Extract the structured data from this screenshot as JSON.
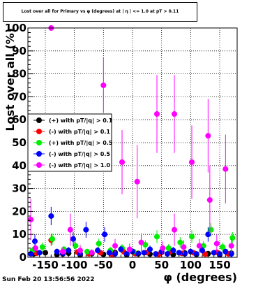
{
  "title": "Lost over all for Primary vs φ (degrees) at | η | <= 1.0 at pT > 0.11",
  "datestamp": "Sun Feb 20 13:56:56 2022",
  "chart_data": {
    "type": "scatter",
    "xlabel": "φ (degrees)",
    "ylabel": "Lost over all (%)",
    "xlim": [
      -180,
      180
    ],
    "ylim": [
      0,
      100
    ],
    "xticks": [
      -150,
      -100,
      -50,
      0,
      50,
      100,
      150
    ],
    "yticks": [
      0,
      10,
      20,
      30,
      40,
      50,
      60,
      70,
      80,
      90,
      100
    ],
    "grid": true,
    "legend_position": "left-middle",
    "series": [
      {
        "name": "(+) with pT/|q| > 0.1",
        "color": "#000000",
        "points": [
          {
            "x": -170,
            "y": 1.5,
            "err": 0.7
          },
          {
            "x": -150,
            "y": 2.0,
            "err": 0.8
          },
          {
            "x": -130,
            "y": 1.2,
            "err": 0.6
          },
          {
            "x": -110,
            "y": 1.8,
            "err": 0.7
          },
          {
            "x": -90,
            "y": 1.0,
            "err": 0.6
          },
          {
            "x": -70,
            "y": 1.6,
            "err": 0.7
          },
          {
            "x": -50,
            "y": 1.3,
            "err": 0.6
          },
          {
            "x": -30,
            "y": 2.1,
            "err": 0.8
          },
          {
            "x": -10,
            "y": 1.1,
            "err": 0.6
          },
          {
            "x": 10,
            "y": 1.7,
            "err": 0.7
          },
          {
            "x": 30,
            "y": 1.4,
            "err": 0.6
          },
          {
            "x": 50,
            "y": 2.2,
            "err": 0.8
          },
          {
            "x": 70,
            "y": 1.2,
            "err": 0.6
          },
          {
            "x": 90,
            "y": 1.9,
            "err": 0.7
          },
          {
            "x": 110,
            "y": 1.3,
            "err": 0.6
          },
          {
            "x": 130,
            "y": 1.6,
            "err": 0.7
          },
          {
            "x": 150,
            "y": 1.1,
            "err": 0.6
          },
          {
            "x": 170,
            "y": 1.8,
            "err": 0.7
          }
        ]
      },
      {
        "name": "(-) with pT/|q| > 0.1",
        "color": "#ff0000",
        "points": [
          {
            "x": -165,
            "y": 1.8,
            "err": 0.8
          },
          {
            "x": -140,
            "y": 7.5,
            "err": 2.5
          },
          {
            "x": -120,
            "y": 1.4,
            "err": 0.7
          },
          {
            "x": -95,
            "y": 2.3,
            "err": 0.9
          },
          {
            "x": -75,
            "y": 1.5,
            "err": 0.7
          },
          {
            "x": -55,
            "y": 2.0,
            "err": 0.8
          },
          {
            "x": -35,
            "y": 1.2,
            "err": 0.6
          },
          {
            "x": -15,
            "y": 2.4,
            "err": 0.9
          },
          {
            "x": 5,
            "y": 1.6,
            "err": 0.7
          },
          {
            "x": 25,
            "y": 2.1,
            "err": 0.8
          },
          {
            "x": 45,
            "y": 1.3,
            "err": 0.6
          },
          {
            "x": 65,
            "y": 2.5,
            "err": 0.9
          },
          {
            "x": 85,
            "y": 1.7,
            "err": 0.7
          },
          {
            "x": 105,
            "y": 2.0,
            "err": 0.8
          },
          {
            "x": 125,
            "y": 1.4,
            "err": 0.7
          },
          {
            "x": 145,
            "y": 2.2,
            "err": 0.8
          },
          {
            "x": 165,
            "y": 1.5,
            "err": 0.7
          }
        ]
      },
      {
        "name": "(+) with pT/|q| > 0.5",
        "color": "#00ee00",
        "points": [
          {
            "x": -172,
            "y": 3.0,
            "err": 1.5
          },
          {
            "x": -155,
            "y": 4.5,
            "err": 2.0
          },
          {
            "x": -138,
            "y": 8.0,
            "err": 2.5
          },
          {
            "x": -118,
            "y": 3.5,
            "err": 1.5
          },
          {
            "x": -98,
            "y": 5.0,
            "err": 2.0
          },
          {
            "x": -78,
            "y": 2.5,
            "err": 1.2
          },
          {
            "x": -58,
            "y": 6.0,
            "err": 2.2
          },
          {
            "x": -38,
            "y": 3.0,
            "err": 1.5
          },
          {
            "x": -18,
            "y": 4.0,
            "err": 1.8
          },
          {
            "x": 2,
            "y": 2.5,
            "err": 1.2
          },
          {
            "x": 22,
            "y": 5.5,
            "err": 2.0
          },
          {
            "x": 42,
            "y": 9.0,
            "err": 2.8
          },
          {
            "x": 62,
            "y": 4.0,
            "err": 1.8
          },
          {
            "x": 82,
            "y": 6.5,
            "err": 2.3
          },
          {
            "x": 102,
            "y": 9.0,
            "err": 2.8
          },
          {
            "x": 122,
            "y": 5.0,
            "err": 2.0
          },
          {
            "x": 135,
            "y": 12.0,
            "err": 3.0
          },
          {
            "x": 155,
            "y": 4.5,
            "err": 2.0
          },
          {
            "x": 172,
            "y": 8.5,
            "err": 2.5
          }
        ]
      },
      {
        "name": "(-) with pT/|q| > 0.5",
        "color": "#0000ff",
        "points": [
          {
            "x": -175,
            "y": 1.5,
            "err": 1.0
          },
          {
            "x": -168,
            "y": 7.0,
            "err": 3.0
          },
          {
            "x": -160,
            "y": 2.0,
            "err": 1.2
          },
          {
            "x": -140,
            "y": 18.0,
            "err": 4.0
          },
          {
            "x": -130,
            "y": 2.5,
            "err": 1.3
          },
          {
            "x": -120,
            "y": 1.5,
            "err": 1.0
          },
          {
            "x": -110,
            "y": 3.0,
            "err": 1.5
          },
          {
            "x": -102,
            "y": 8.0,
            "err": 3.0
          },
          {
            "x": -90,
            "y": 1.5,
            "err": 1.0
          },
          {
            "x": -80,
            "y": 12.0,
            "err": 3.5
          },
          {
            "x": -70,
            "y": 2.0,
            "err": 1.2
          },
          {
            "x": -60,
            "y": 3.0,
            "err": 1.5
          },
          {
            "x": -48,
            "y": 10.0,
            "err": 3.2
          },
          {
            "x": -40,
            "y": 2.0,
            "err": 1.2
          },
          {
            "x": -30,
            "y": 1.5,
            "err": 1.0
          },
          {
            "x": -20,
            "y": 3.5,
            "err": 1.5
          },
          {
            "x": -10,
            "y": 1.5,
            "err": 1.0
          },
          {
            "x": 0,
            "y": 2.5,
            "err": 1.3
          },
          {
            "x": 10,
            "y": 1.5,
            "err": 1.0
          },
          {
            "x": 20,
            "y": 2.0,
            "err": 1.2
          },
          {
            "x": 30,
            "y": 3.5,
            "err": 1.6
          },
          {
            "x": 40,
            "y": 1.5,
            "err": 1.0
          },
          {
            "x": 50,
            "y": 2.5,
            "err": 1.3
          },
          {
            "x": 60,
            "y": 1.5,
            "err": 1.0
          },
          {
            "x": 70,
            "y": 3.0,
            "err": 1.5
          },
          {
            "x": 80,
            "y": 2.0,
            "err": 1.2
          },
          {
            "x": 90,
            "y": 1.5,
            "err": 1.0
          },
          {
            "x": 100,
            "y": 2.5,
            "err": 1.3
          },
          {
            "x": 110,
            "y": 1.5,
            "err": 1.0
          },
          {
            "x": 120,
            "y": 3.0,
            "err": 1.5
          },
          {
            "x": 130,
            "y": 10.0,
            "err": 3.2
          },
          {
            "x": 140,
            "y": 2.0,
            "err": 1.2
          },
          {
            "x": 150,
            "y": 1.5,
            "err": 1.0
          },
          {
            "x": 160,
            "y": 2.5,
            "err": 1.3
          },
          {
            "x": 170,
            "y": 1.5,
            "err": 1.0
          }
        ]
      },
      {
        "name": "(-) with pT/|q| > 1.0",
        "color": "#ff00ff",
        "points": [
          {
            "x": -175,
            "y": 16.5,
            "err": 9.0
          },
          {
            "x": -167,
            "y": 4.0,
            "err": 3.0
          },
          {
            "x": -140,
            "y": 100.0,
            "err": 0.0
          },
          {
            "x": -120,
            "y": 2.5,
            "err": 2.0
          },
          {
            "x": -107,
            "y": 12.0,
            "err": 7.0
          },
          {
            "x": -90,
            "y": 3.0,
            "err": 2.5
          },
          {
            "x": -70,
            "y": 2.0,
            "err": 1.5
          },
          {
            "x": -50,
            "y": 75.0,
            "err": 12.0
          },
          {
            "x": -30,
            "y": 5.0,
            "err": 3.0
          },
          {
            "x": -18,
            "y": 41.5,
            "err": 14.0
          },
          {
            "x": -5,
            "y": 3.5,
            "err": 2.5
          },
          {
            "x": 8,
            "y": 33.0,
            "err": 16.0
          },
          {
            "x": 15,
            "y": 6.5,
            "err": 4.0
          },
          {
            "x": 42,
            "y": 62.5,
            "err": 17.0
          },
          {
            "x": 52,
            "y": 4.0,
            "err": 3.0
          },
          {
            "x": 72,
            "y": 62.5,
            "err": 17.0
          },
          {
            "x": 72,
            "y": 12.0,
            "err": 7.0
          },
          {
            "x": 88,
            "y": 4.5,
            "err": 3.0
          },
          {
            "x": 102,
            "y": 41.5,
            "err": 16.0
          },
          {
            "x": 115,
            "y": 5.0,
            "err": 3.0
          },
          {
            "x": 130,
            "y": 53.0,
            "err": 16.0
          },
          {
            "x": 133,
            "y": 25.0,
            "err": 15.0
          },
          {
            "x": 145,
            "y": 6.0,
            "err": 4.0
          },
          {
            "x": 160,
            "y": 38.5,
            "err": 15.0
          },
          {
            "x": 170,
            "y": 5.0,
            "err": 3.0
          }
        ]
      }
    ]
  }
}
